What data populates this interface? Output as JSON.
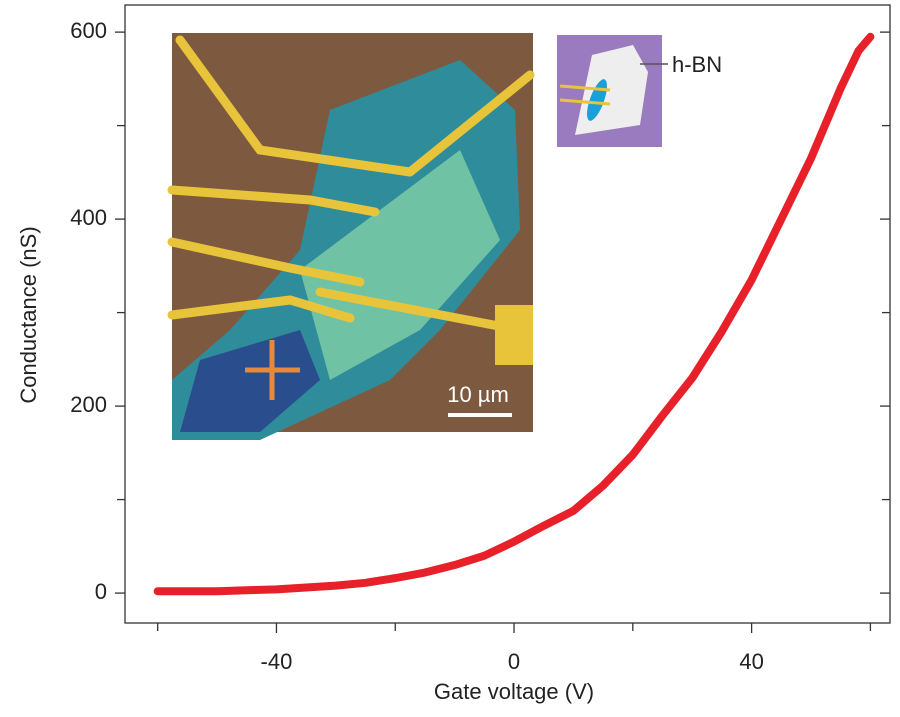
{
  "chart_data": {
    "type": "line",
    "x_label": "Gate voltage (V)",
    "y_label": "Conductance (nS)",
    "x": [
      -60,
      -55,
      -50,
      -45,
      -40,
      -35,
      -30,
      -25,
      -20,
      -15,
      -10,
      -5,
      0,
      5,
      10,
      15,
      20,
      25,
      30,
      35,
      40,
      45,
      50,
      55,
      58,
      60
    ],
    "series": [
      {
        "color": "#e8202a",
        "values": [
          2,
          2,
          2,
          3,
          4,
          6,
          8,
          11,
          16,
          22,
          30,
          40,
          55,
          72,
          88,
          115,
          148,
          190,
          230,
          280,
          335,
          400,
          465,
          540,
          580,
          595
        ]
      }
    ],
    "xlim": [
      -65.5,
      63.3
    ],
    "ylim": [
      -32,
      629
    ],
    "xticks": [
      -40,
      0,
      40
    ],
    "xminorticks": [
      -60,
      -20,
      20,
      60
    ],
    "yticks": [
      0,
      200,
      400,
      600
    ],
    "yminorticks": [
      100,
      300,
      500
    ],
    "inset_labels": {
      "scale_bar": "10 µm",
      "hbn": "h-BN"
    }
  }
}
